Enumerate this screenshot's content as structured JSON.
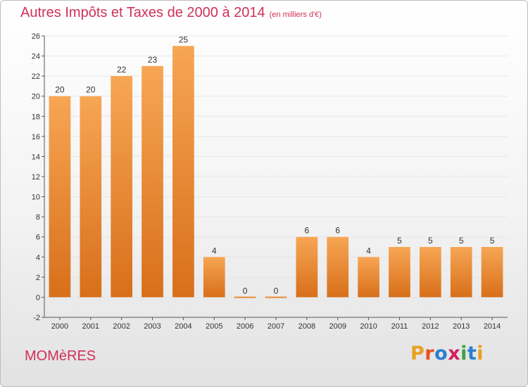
{
  "header": {
    "title": "Autres Impôts et Taxes de 2000 à 2014",
    "unit": "(en milliers d'€)"
  },
  "footer": {
    "commune": "MOMèRES",
    "logo_text": "Proxiti",
    "logo_colors": [
      "#e8a020",
      "#e85020",
      "#2a7fd0",
      "#d02060",
      "#40a040",
      "#2a7fd0",
      "#e8a020"
    ]
  },
  "colors": {
    "bar_top": "#f7a654",
    "bar_bottom": "#d86f1a",
    "title": "#d0305a",
    "grid": "#e6e6e6"
  },
  "chart_data": {
    "type": "bar",
    "title": "Autres Impôts et Taxes de 2000 à 2014",
    "xlabel": "",
    "ylabel": "",
    "categories": [
      "2000",
      "2001",
      "2002",
      "2003",
      "2004",
      "2005",
      "2006",
      "2007",
      "2008",
      "2009",
      "2010",
      "2011",
      "2012",
      "2013",
      "2014"
    ],
    "values": [
      20,
      20,
      22,
      23,
      25,
      4,
      0,
      0,
      6,
      6,
      4,
      5,
      5,
      5,
      5
    ],
    "ylim": [
      -2,
      26
    ],
    "yticks": [
      -2,
      0,
      2,
      4,
      6,
      8,
      10,
      12,
      14,
      16,
      18,
      20,
      22,
      24,
      26
    ],
    "grid": true,
    "data_labels": true
  }
}
